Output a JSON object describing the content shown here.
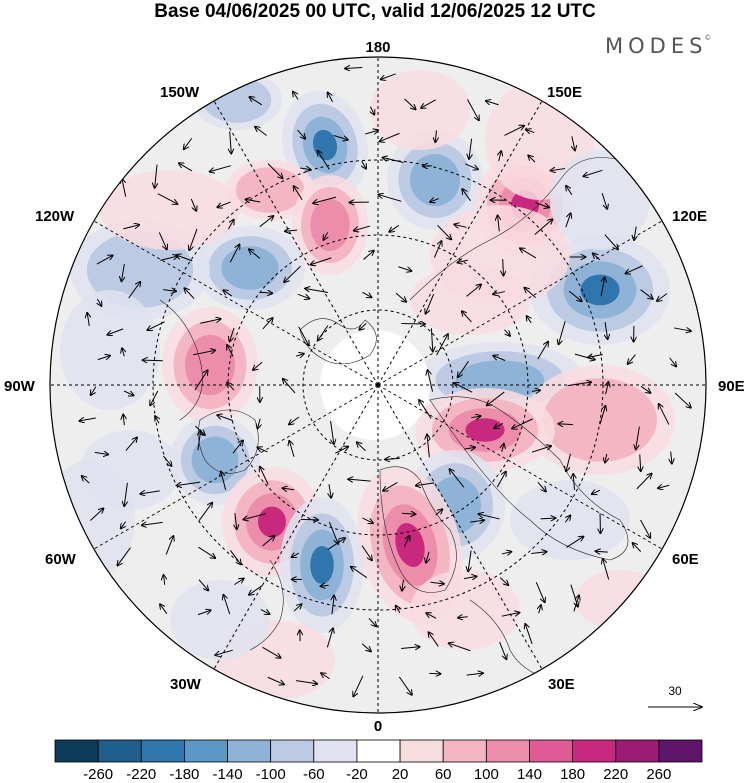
{
  "title": "Base 04/06/2025 00 UTC, valid 12/06/2025 12 UTC",
  "brand": "MODES",
  "brand_mark": "©",
  "longitude_labels": {
    "top": "180",
    "bottom": "0",
    "left": "90W",
    "right": "90E",
    "upper_left_1": "150W",
    "upper_left_2": "120W",
    "lower_left_1": "60W",
    "lower_left_2": "30W",
    "upper_right_1": "150E",
    "upper_right_2": "120E",
    "lower_right_1": "60E",
    "lower_right_2": "30E"
  },
  "reference_vector": {
    "value": "30"
  },
  "colorbar": {
    "ticks": [
      "-260",
      "-220",
      "-180",
      "-140",
      "-100",
      "-60",
      "-20",
      "20",
      "60",
      "100",
      "140",
      "180",
      "220",
      "260"
    ],
    "colors": [
      "#0e3c5b",
      "#1f5e8d",
      "#2e76ad",
      "#5b98c6",
      "#8eb3d7",
      "#bccbe3",
      "#e1e4f0",
      "#ffffff",
      "#f9dce0",
      "#f3b6c2",
      "#ec8eab",
      "#e05a95",
      "#c8287d",
      "#9c1b73",
      "#5e1468"
    ]
  },
  "anomaly_colors": {
    "negative_light": "#dfe3ef",
    "negative_mid": "#bccbe3",
    "negative_strong": "#8eb3d7",
    "negative_deep": "#2e76ad",
    "positive_light": "#f9dce0",
    "positive_mid": "#f3b6c2",
    "positive_strong": "#ec8eab",
    "positive_deep": "#c8287d",
    "land_grey": "#e6e6e6"
  }
}
